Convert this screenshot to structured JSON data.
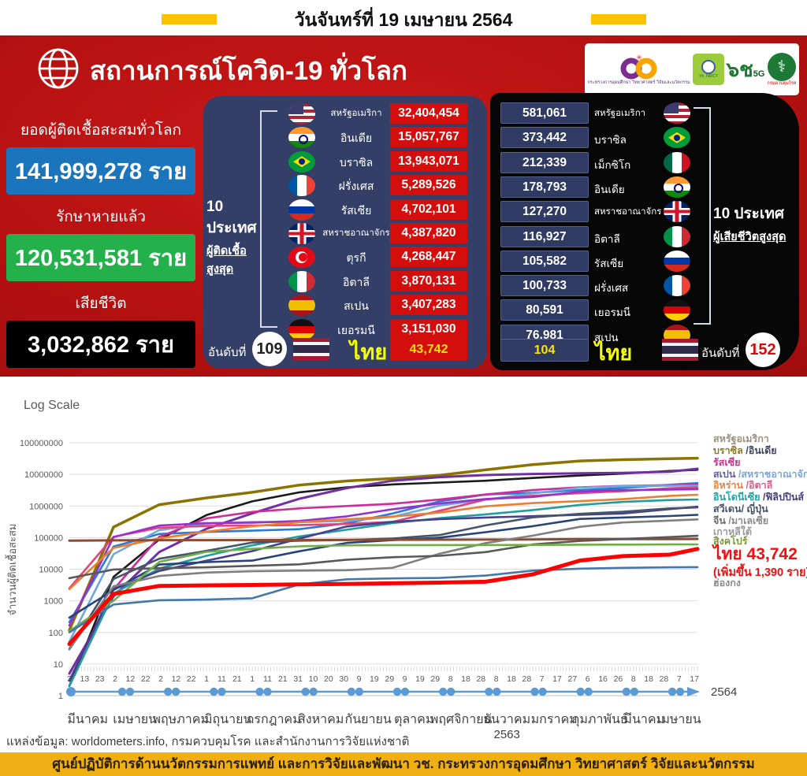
{
  "page": {
    "date_title": "วันจันทร์ที่ 19 เมษายน 2564",
    "source_note": "แหล่งข้อมูล: worldometers.info, กรมควบคุมโรค และสำนักงานการวิจัยแห่งชาติ",
    "footer_bar": "ศูนย์ปฏิบัติการด้านนวัตกรรมการแพทย์ และการวิจัยและพัฒนา   วช.   กระทรวงการอุดมศึกษา วิทยาศาสตร์ วิจัยและนวัตกรรม"
  },
  "banner": {
    "title": "สถานการณ์โควิด-19 ทั่วโลก",
    "stats": [
      {
        "label": "ยอดผู้ติดเชื้อสะสมทั่วโลก",
        "value": "141,999,278 ราย",
        "color": "#1b75bc"
      },
      {
        "label": "รักษาหายแล้ว",
        "value": "120,531,581 ราย",
        "color": "#24b14b"
      },
      {
        "label": "เสียชีวิต",
        "value": "3,032,862 ราย",
        "color": "#000000"
      }
    ],
    "logos": [
      {
        "caption": "กระทรวงการอุดมศึกษา วิทยาศาสตร์ วิจัยและนวัตกรรม"
      },
      {
        "caption": "วช. NRCT"
      },
      {
        "caption": "๖ช 5G"
      },
      {
        "caption": "กรมควบคุมโรค"
      }
    ]
  },
  "infections_panel": {
    "group_line1": "10 ประเทศ",
    "group_line2": "ผู้ติดเชื้อสูงสุด",
    "rows": [
      {
        "country": "สหรัฐอเมริกา",
        "flag": "us",
        "value": "32,404,454"
      },
      {
        "country": "อินเดีย",
        "flag": "in",
        "value": "15,057,767"
      },
      {
        "country": "บราซิล",
        "flag": "br",
        "value": "13,943,071"
      },
      {
        "country": "ฝรั่งเศส",
        "flag": "fr",
        "value": "5,289,526"
      },
      {
        "country": "รัสเซีย",
        "flag": "ru",
        "value": "4,702,101"
      },
      {
        "country": "สหราชอาณาจักร",
        "flag": "gb",
        "value": "4,387,820"
      },
      {
        "country": "ตุรกี",
        "flag": "tr",
        "value": "4,268,447"
      },
      {
        "country": "อิตาลี",
        "flag": "it",
        "value": "3,870,131"
      },
      {
        "country": "สเปน",
        "flag": "es",
        "value": "3,407,283"
      },
      {
        "country": "เยอรมนี",
        "flag": "de",
        "value": "3,151,030"
      }
    ],
    "thailand": {
      "rank_label": "อันดับที่",
      "rank": "109",
      "country": "ไทย",
      "flag": "th",
      "value": "43,742"
    }
  },
  "deaths_panel": {
    "group_line1": "10 ประเทศ",
    "group_line2": "ผู้เสียชีวิตสูงสุด",
    "rows": [
      {
        "value": "581,061",
        "country": "สหรัฐอเมริกา",
        "flag": "us"
      },
      {
        "value": "373,442",
        "country": "บราซิล",
        "flag": "br"
      },
      {
        "value": "212,339",
        "country": "เม็กซิโก",
        "flag": "mx"
      },
      {
        "value": "178,793",
        "country": "อินเดีย",
        "flag": "in"
      },
      {
        "value": "127,270",
        "country": "สหราชอาณาจักร",
        "flag": "gb"
      },
      {
        "value": "116,927",
        "country": "อิตาลี",
        "flag": "it"
      },
      {
        "value": "105,582",
        "country": "รัสเซีย",
        "flag": "ru"
      },
      {
        "value": "100,733",
        "country": "ฝรั่งเศส",
        "flag": "fr"
      },
      {
        "value": "80,591",
        "country": "เยอรมนี",
        "flag": "de"
      },
      {
        "value": "76,981",
        "country": "สเปน",
        "flag": "es"
      }
    ],
    "thailand": {
      "value": "104",
      "country": "ไทย",
      "flag": "th",
      "rank_label": "อันดับที่",
      "rank": "152"
    }
  },
  "chart_data": {
    "type": "line",
    "title": "Log Scale",
    "ylabel": "จำนวนผู้ติดเชื้อสะสม",
    "log_scale": true,
    "ylim": [
      1,
      100000000
    ],
    "yticks": [
      1,
      10,
      100,
      1000,
      10000,
      100000,
      1000000,
      10000000,
      100000000
    ],
    "x_day_labels": [
      "3",
      "13",
      "23",
      "2",
      "12",
      "22",
      "2",
      "12",
      "22",
      "1",
      "11",
      "21",
      "1",
      "11",
      "21",
      "31",
      "10",
      "20",
      "30",
      "9",
      "19",
      "29",
      "9",
      "19",
      "29",
      "8",
      "18",
      "28",
      "8",
      "18",
      "28",
      "7",
      "17",
      "27",
      "6",
      "16",
      "26",
      "8",
      "18",
      "28",
      "7",
      "17"
    ],
    "x_month_labels": [
      "มีนาคม",
      "เมษายน",
      "พฤษภาคม",
      "มิถุนายน",
      "กรกฎาคม",
      "สิงหาคม",
      "กันยายน",
      "ตุลาคม",
      "พฤศจิกายน",
      "ธันวาคม",
      "มกราคม",
      "กุมภาพันธ์",
      "มีนาคม",
      "เมษายน"
    ],
    "year_under_month_index": 9,
    "year_under_month": "2563",
    "axis_end_year": "2564",
    "grid": true,
    "days": [
      0,
      29,
      59,
      90,
      120,
      151,
      182,
      212,
      243,
      273,
      304,
      335,
      363,
      394,
      412
    ],
    "series": [
      {
        "name": "สหรัฐอเมริกา",
        "color": "#8a7300",
        "width": 3.5,
        "values": [
          118,
          215000,
          1100000,
          1800000,
          2700000,
          4600000,
          6200000,
          7400000,
          9400000,
          13900000,
          20400000,
          26500000,
          29200000,
          31200000,
          32404454
        ]
      },
      {
        "name": "บราซิล",
        "color": "#1a1a1a",
        "width": 2.6,
        "values": [
          2,
          5700,
          87000,
          515000,
          1400000,
          2700000,
          3900000,
          4800000,
          5500000,
          6300000,
          7700000,
          9200000,
          10600000,
          12800000,
          13943071
        ]
      },
      {
        "name": "อินเดีย",
        "color": "#7030a0",
        "width": 3,
        "values": [
          5,
          1400,
          35000,
          190000,
          585000,
          1700000,
          3700000,
          6300000,
          8200000,
          9500000,
          10300000,
          10800000,
          11100000,
          12100000,
          15057767
        ]
      },
      {
        "name": "ฝรั่งเศส",
        "color": "#2b7bd4",
        "width": 2.6,
        "values": [
          212,
          52000,
          130000,
          151000,
          165000,
          185000,
          286000,
          577000,
          1400000,
          2300000,
          2600000,
          3200000,
          3700000,
          4700000,
          5289526
        ]
      },
      {
        "name": "รัสเซีย",
        "color": "#d12b9b",
        "width": 2.6,
        "values": [
          3,
          2300,
          106000,
          405000,
          647000,
          838000,
          995000,
          1180000,
          1600000,
          2300000,
          3200000,
          3900000,
          4300000,
          4550000,
          4702101
        ]
      },
      {
        "name": "สหราชอาณาจักร",
        "color": "#6fa8dc",
        "width": 2.6,
        "values": [
          51,
          30000,
          172000,
          276000,
          313000,
          310000,
          336000,
          453000,
          1030000,
          1600000,
          2500000,
          3800000,
          4200000,
          4360000,
          4387820
        ]
      },
      {
        "name": "อิตาลี",
        "color": "#e0457b",
        "width": 2.6,
        "values": [
          2500,
          106000,
          205000,
          233000,
          241000,
          248000,
          270000,
          314000,
          710000,
          1600000,
          2100000,
          2550000,
          2940000,
          3650000,
          3870131
        ]
      },
      {
        "name": "สเปน",
        "color": "#9b30c9",
        "width": 2.6,
        "values": [
          165,
          104000,
          240000,
          287000,
          297000,
          335000,
          470000,
          790000,
          1200000,
          1660000,
          1930000,
          2850000,
          3160000,
          3310000,
          3407283
        ]
      },
      {
        "name": "อิหร่าน",
        "color": "#ed7d31",
        "width": 2.6,
        "values": [
          2336,
          47000,
          95000,
          154000,
          230000,
          306000,
          378000,
          462000,
          620000,
          975000,
          1230000,
          1420000,
          1640000,
          2090000,
          2260000
        ]
      },
      {
        "name": "อินโดนีเซีย",
        "color": "#1f9e9e",
        "width": 2.6,
        "values": [
          2,
          1700,
          10500,
          26500,
          57000,
          109000,
          177000,
          287000,
          412000,
          543000,
          743000,
          1080000,
          1340000,
          1540000,
          1610000
        ]
      },
      {
        "name": "ฟิลิปปินส์",
        "color": "#4a3e8e",
        "width": 2.6,
        "values": [
          3,
          2300,
          8800,
          18600,
          37500,
          93000,
          224000,
          314000,
          383000,
          432000,
          475000,
          528000,
          578000,
          795000,
          945000
        ]
      },
      {
        "name": "สวีเดน",
        "color": "#44546a",
        "width": 2.6,
        "values": [
          30,
          4900,
          21500,
          38000,
          70000,
          80000,
          84000,
          93000,
          121000,
          243000,
          437000,
          566000,
          657000,
          840000,
          900000
        ]
      },
      {
        "name": "ญี่ปุ่น",
        "color": "#264478",
        "width": 2.6,
        "values": [
          293,
          2200,
          14000,
          16800,
          18700,
          37000,
          68000,
          83000,
          100000,
          148000,
          230000,
          390000,
          432000,
          480000,
          524000
        ]
      },
      {
        "name": "จีน",
        "color": "#8f4b2e",
        "width": 3,
        "values": [
          80300,
          81600,
          82900,
          83000,
          83600,
          84300,
          85100,
          85400,
          85900,
          86500,
          87100,
          89300,
          89900,
          90300,
          90500
        ]
      },
      {
        "name": "มาเลเซีย",
        "color": "#7f7f7f",
        "width": 2.6,
        "values": [
          29,
          2900,
          6100,
          7800,
          8600,
          9000,
          9300,
          11000,
          31000,
          67000,
          115000,
          219000,
          300000,
          345000,
          375000
        ]
      },
      {
        "name": "เกาหลีใต้",
        "color": "#595959",
        "width": 2.6,
        "values": [
          5186,
          9800,
          10800,
          11500,
          12800,
          14300,
          20000,
          23900,
          26600,
          34700,
          60700,
          78500,
          90000,
          104000,
          114000
        ]
      },
      {
        "name": "สิงคโปร์",
        "color": "#70ad47",
        "width": 2.6,
        "values": [
          110,
          1000,
          17100,
          35300,
          43900,
          52800,
          56800,
          57800,
          58000,
          58200,
          58600,
          59700,
          60000,
          60500,
          60800
        ]
      },
      {
        "name": "ฮ่องกง",
        "color": "#4477aa",
        "width": 2.6,
        "values": [
          101,
          765,
          1040,
          1090,
          1200,
          3300,
          4800,
          5100,
          5300,
          6300,
          9000,
          10400,
          11000,
          11500,
          11600
        ]
      },
      {
        "name": "ไทย",
        "color": "#ff0000",
        "width": 5,
        "values": [
          43,
          1651,
          2954,
          3082,
          3180,
          3310,
          3425,
          3575,
          3780,
          4008,
          6884,
          18782,
          25951,
          28863,
          43742
        ]
      }
    ],
    "legend": [
      {
        "parts": [
          {
            "t": "สหรัฐอเมริกา",
            "c": "#9c9083"
          }
        ]
      },
      {
        "parts": [
          {
            "t": "บราซิล ",
            "c": "#8f7b20"
          },
          {
            "t": "/อินเดีย",
            "c": "#3f4663"
          }
        ]
      },
      {
        "parts": [
          {
            "t": "รัสเซีย",
            "c": "#c0368c"
          }
        ]
      },
      {
        "parts": [
          {
            "t": "สเปน ",
            "c": "#5f5fa8"
          },
          {
            "t": "/สหราชอาณาจักร",
            "c": "#7ba7d4"
          }
        ]
      },
      {
        "parts": [
          {
            "t": "อิหร่าน ",
            "c": "#e8833a"
          },
          {
            "t": "/อิตาลี",
            "c": "#d95f8d"
          }
        ]
      },
      {
        "parts": [
          {
            "t": "อินโดนีเซีย ",
            "c": "#23a3a3"
          },
          {
            "t": "/ฟิลิปปินส์",
            "c": "#4a3e75"
          }
        ]
      },
      {
        "parts": [
          {
            "t": "สวีเดน/ ญี่ปุ่น",
            "c": "#46546b"
          }
        ]
      },
      {
        "parts": [
          {
            "t": "จีน ",
            "c": "#6e6e6e"
          },
          {
            "t": "/มาเลเซีย",
            "c": "#8a8a8a"
          }
        ]
      },
      {
        "parts": [
          {
            "t": "เกาหลีใต้",
            "c": "#999999"
          }
        ]
      },
      {
        "parts": [
          {
            "t": "สิงคโปร์",
            "c": "#7f9445"
          }
        ]
      },
      {
        "size": "big",
        "parts": [
          {
            "t": "ไทย 43,742",
            "c": "#ee1111"
          }
        ]
      },
      {
        "size": "mid",
        "parts": [
          {
            "t": "(เพิ่มขึ้น 1,390 ราย)",
            "c": "#ee1111"
          }
        ]
      },
      {
        "parts": [
          {
            "t": "ฮ่องกง",
            "c": "#8a8a8a"
          }
        ]
      }
    ]
  }
}
